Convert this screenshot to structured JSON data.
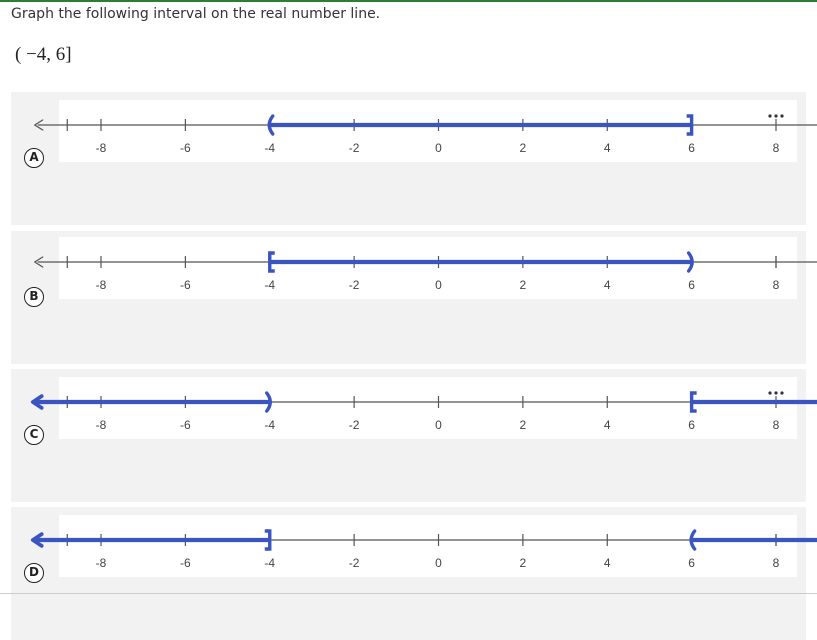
{
  "question": {
    "prompt": "Graph the following interval on the real number line.",
    "interval": "( −4, 6]"
  },
  "colors": {
    "highlight": "#3a55c0",
    "axis": "#555555",
    "card": "#f2f2f2",
    "accent_rule": "#2e7d32"
  },
  "number_line": {
    "min": -9.5,
    "max": 9.5,
    "tick_labels": [
      "-8",
      "-6",
      "-4",
      "-2",
      "0",
      "2",
      "4",
      "6",
      "8"
    ]
  },
  "options": [
    {
      "letter": "A",
      "segments": [
        {
          "from": -4,
          "to": 6,
          "left_mark": "open-paren",
          "right_mark": "closed-bracket"
        }
      ],
      "right_end_glyph": "ellipsis"
    },
    {
      "letter": "B",
      "segments": [
        {
          "from": -4,
          "to": 6,
          "left_mark": "closed-bracket",
          "right_mark": "open-paren"
        }
      ],
      "right_end_glyph": "arrow"
    },
    {
      "letter": "C",
      "segments": [
        {
          "from": "-inf",
          "to": -4,
          "left_mark": "arrow",
          "right_mark": "open-paren"
        },
        {
          "from": 6,
          "to": "inf",
          "left_mark": "closed-bracket",
          "right_mark": "arrow"
        }
      ],
      "right_end_glyph": "ellipsis"
    },
    {
      "letter": "D",
      "segments": [
        {
          "from": "-inf",
          "to": -4,
          "left_mark": "arrow",
          "right_mark": "closed-bracket"
        },
        {
          "from": 6,
          "to": "inf",
          "left_mark": "open-paren",
          "right_mark": "arrow"
        }
      ],
      "right_end_glyph": "arrow"
    }
  ]
}
